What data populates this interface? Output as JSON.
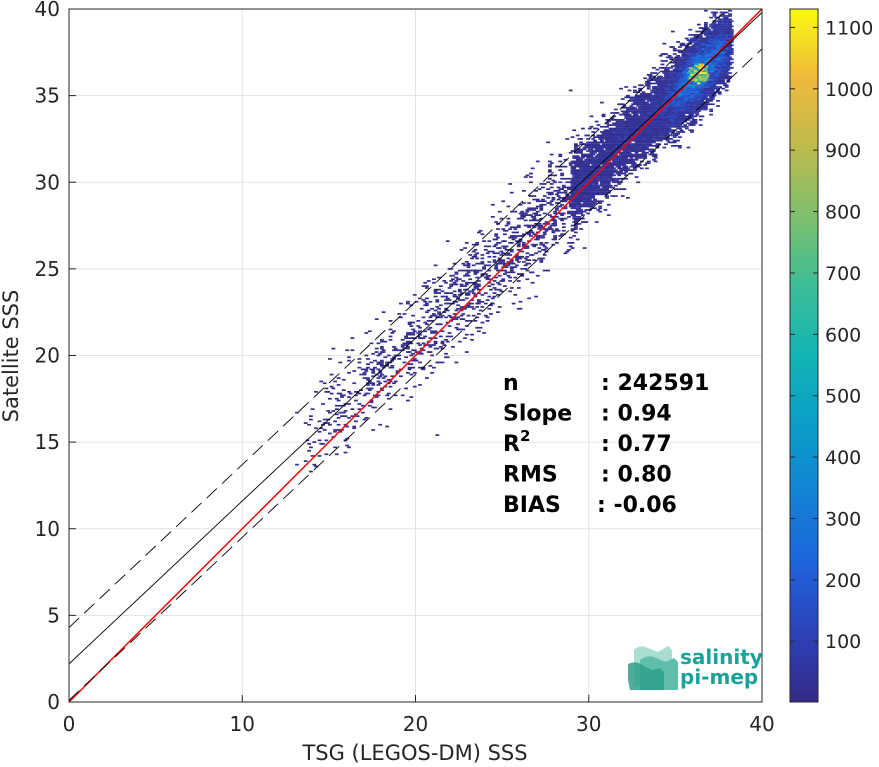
{
  "chart_data": {
    "type": "heatmap",
    "xlabel": "TSG (LEGOS-DM) SSS",
    "ylabel": "Satellite SSS",
    "xlim": [
      0,
      40
    ],
    "ylim": [
      0,
      40
    ],
    "x_ticks": [
      "0",
      "10",
      "20",
      "30",
      "40"
    ],
    "y_ticks": [
      "0",
      "5",
      "10",
      "15",
      "20",
      "25",
      "30",
      "35",
      "40"
    ],
    "grid": true,
    "colorbar": {
      "range": [
        1,
        1130
      ],
      "ticks": [
        "100",
        "200",
        "300",
        "400",
        "500",
        "600",
        "700",
        "800",
        "900",
        "1000",
        "1100"
      ],
      "colormap": "parula"
    },
    "lines": [
      {
        "name": "identity",
        "color": "#ff0000",
        "style": "solid",
        "points": [
          [
            0,
            0
          ],
          [
            40,
            40
          ]
        ]
      },
      {
        "name": "regression",
        "color": "#000000",
        "style": "solid",
        "points": [
          [
            0,
            2.2
          ],
          [
            40,
            39.8
          ]
        ]
      },
      {
        "name": "regression-plus",
        "color": "#000000",
        "style": "dashed",
        "points": [
          [
            0,
            4.3
          ],
          [
            40,
            41.9
          ]
        ]
      },
      {
        "name": "regression-minus",
        "color": "#000000",
        "style": "dashed",
        "points": [
          [
            0,
            0.1
          ],
          [
            40,
            37.7
          ]
        ]
      }
    ],
    "density_peak": {
      "x": 36.3,
      "y": 36.3,
      "count": 1100
    },
    "stats": [
      {
        "key": "n",
        "value": ": 242591"
      },
      {
        "key": "Slope",
        "value": ": 0.94"
      },
      {
        "key": "R",
        "sup": "2",
        "value": ": 0.77"
      },
      {
        "key": "RMS",
        "value": ": 0.80"
      },
      {
        "key": "BIAS",
        "value": ": -0.06"
      }
    ]
  },
  "logo": {
    "line1": "salinity",
    "line2": "pi-mep"
  },
  "colors": {
    "identity": "#ff0000",
    "regression": "#000000",
    "grid": "#e3e3e3"
  }
}
